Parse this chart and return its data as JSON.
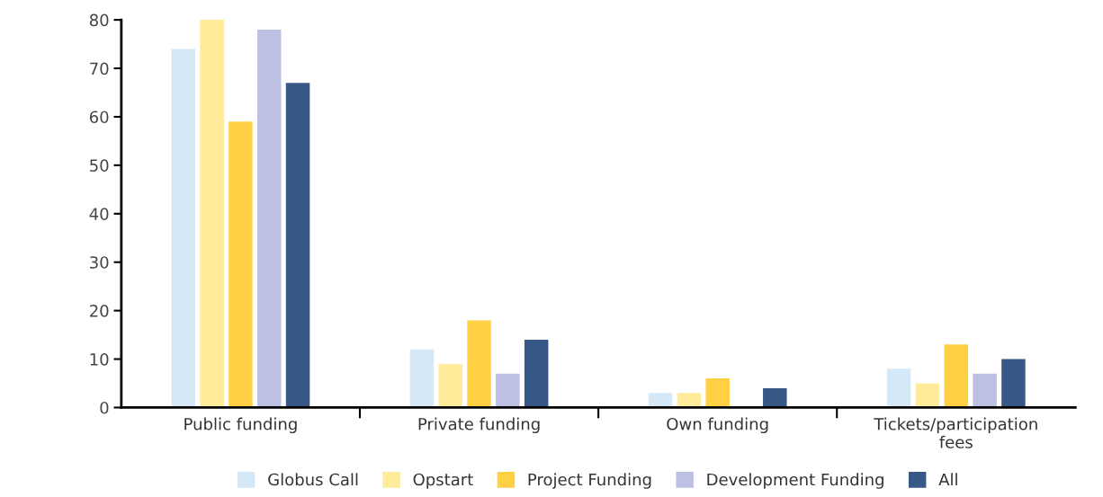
{
  "chart_data": {
    "type": "bar",
    "categories": [
      "Public funding",
      "Private funding",
      "Own funding",
      "Tickets/participation\nfees"
    ],
    "series": [
      {
        "name": "Globus Call",
        "color": "#d5e8f8",
        "values": [
          74,
          12,
          3,
          8
        ]
      },
      {
        "name": "Opstart",
        "color": "#ffeb99",
        "values": [
          80,
          9,
          3,
          5
        ]
      },
      {
        "name": "Project Funding",
        "color": "#ffd043",
        "values": [
          59,
          18,
          6,
          13
        ]
      },
      {
        "name": "Development Funding",
        "color": "#bdbfe3",
        "values": [
          78,
          7,
          0,
          7
        ]
      },
      {
        "name": "All",
        "color": "#375886",
        "values": [
          67,
          14,
          4,
          10
        ]
      }
    ],
    "ylim": [
      0,
      80
    ],
    "yticks": [
      0,
      10,
      20,
      30,
      40,
      50,
      60,
      70,
      80
    ],
    "grid": false,
    "legend": "bottom"
  }
}
